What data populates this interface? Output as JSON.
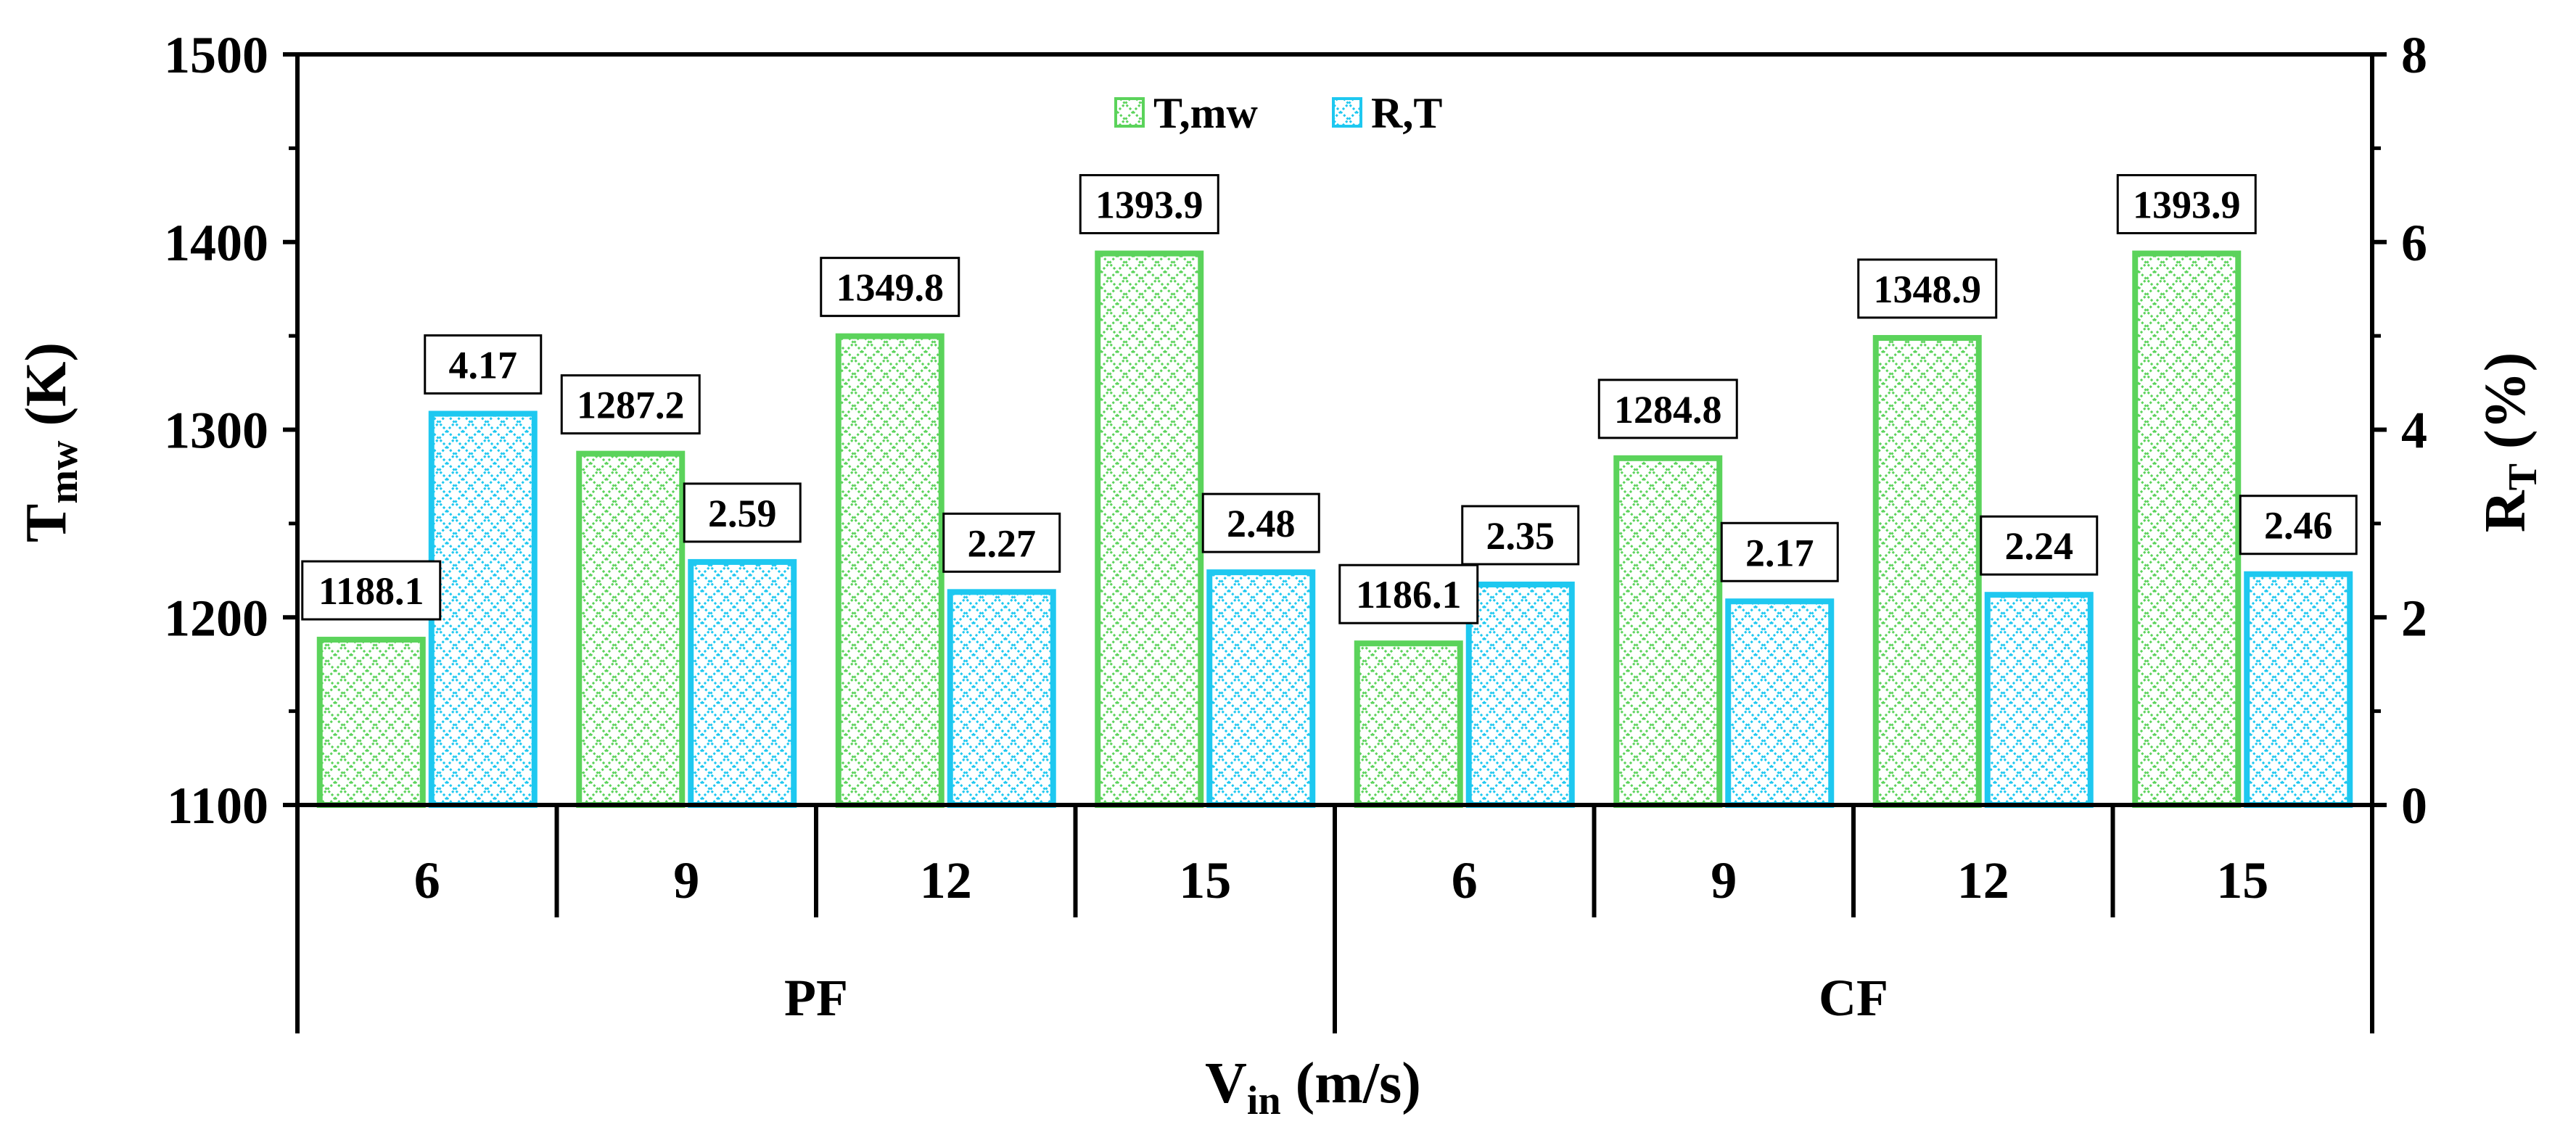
{
  "chart_data": {
    "type": "bar",
    "categories": [
      "6",
      "9",
      "12",
      "15",
      "6",
      "9",
      "12",
      "15"
    ],
    "groups": [
      "PF",
      "CF"
    ],
    "series": [
      {
        "name": "T,mw",
        "axis": "left",
        "values": [
          1188.1,
          1287.2,
          1349.8,
          1393.9,
          1186.1,
          1284.8,
          1348.9,
          1393.9
        ],
        "labels": [
          "1188.1",
          "1287.2",
          "1349.8",
          "1393.9",
          "1186.1",
          "1284.8",
          "1348.9",
          "1393.9"
        ],
        "color": "#5bd35b"
      },
      {
        "name": "R,T",
        "axis": "right",
        "values": [
          4.17,
          2.59,
          2.27,
          2.48,
          2.35,
          2.17,
          2.24,
          2.46
        ],
        "labels": [
          "4.17",
          "2.59",
          "2.27",
          "2.48",
          "2.35",
          "2.17",
          "2.24",
          "2.46"
        ],
        "color": "#1ec8f0"
      }
    ],
    "ylim_left": [
      1100,
      1500
    ],
    "yticks_left": [
      "1100",
      "1200",
      "1300",
      "1400",
      "1500"
    ],
    "ylim_right": [
      0,
      8
    ],
    "yticks_right": [
      "0",
      "2",
      "4",
      "6",
      "8"
    ],
    "ylabel_left": {
      "main": "T",
      "sub": "mw",
      "rest": " (K)"
    },
    "ylabel_right": {
      "main": "R",
      "sub": "T",
      "rest": " (%)"
    },
    "xlabel": {
      "main": "V",
      "sub": "in",
      "rest": " (m/s)"
    },
    "legend_position": "top-center",
    "grid": false
  }
}
